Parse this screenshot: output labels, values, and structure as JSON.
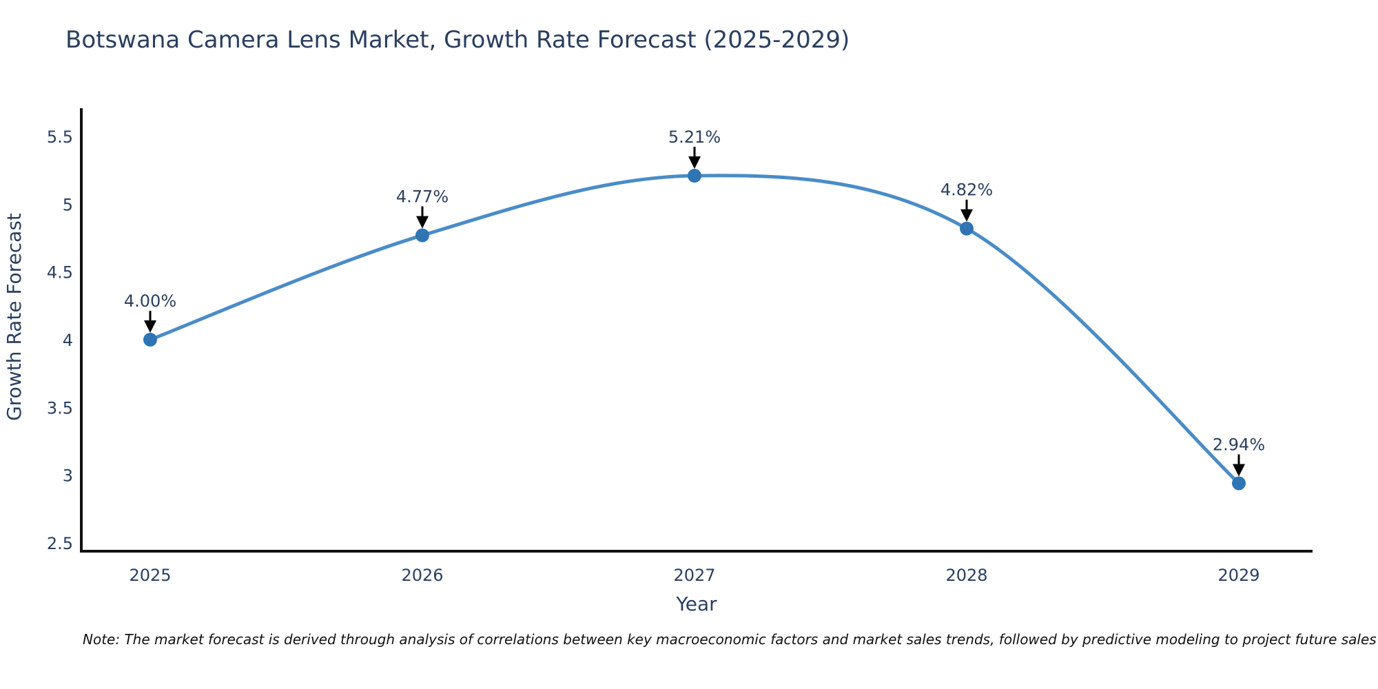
{
  "title": "Botswana Camera Lens Market, Growth Rate Forecast (2025-2029)",
  "note": "Note: The market forecast is derived through analysis of correlations between key macroeconomic factors and market sales trends, followed by predictive modeling to project future sales",
  "chart_data": {
    "type": "line",
    "title": "Botswana Camera Lens Market, Growth Rate Forecast (2025-2029)",
    "x": [
      2025,
      2026,
      2027,
      2028,
      2029
    ],
    "xticks": [
      "2025",
      "2026",
      "2027",
      "2028",
      "2029"
    ],
    "series": [
      {
        "name": "Growth Rate Forecast",
        "values": [
          4.0,
          4.77,
          5.21,
          4.82,
          2.94
        ]
      }
    ],
    "point_labels": [
      "4.00%",
      "4.77%",
      "5.21%",
      "4.82%",
      "2.94%"
    ],
    "xlabel": "Year",
    "ylabel": "Growth Rate Forecast",
    "ylim": [
      2.5,
      5.5
    ],
    "yticks": [
      2.5,
      3,
      3.5,
      4,
      4.5,
      5,
      5.5
    ],
    "grid": false,
    "legend": "none",
    "line_shape": "spline",
    "line_color": "#4a8cc7",
    "marker_color": "#2f74b3",
    "axis_color": "#111111",
    "text_color": "#2a3f5f",
    "arrow_color": "#000000"
  }
}
